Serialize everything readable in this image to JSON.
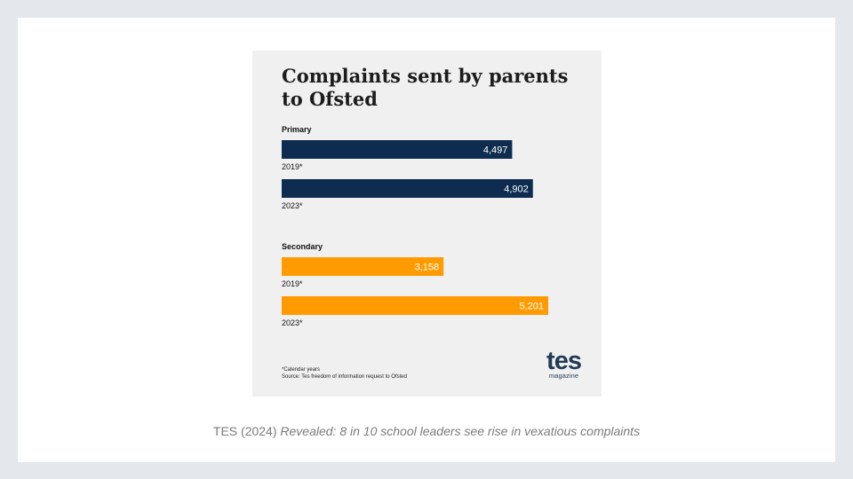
{
  "caption": {
    "source": "TES (2024)",
    "article_title": "Revealed: 8 in 10 school leaders see rise in vexatious complaints"
  },
  "chart_data": {
    "type": "bar",
    "orientation": "horizontal",
    "title": "Complaints sent by parents to Ofsted",
    "groups": [
      {
        "name": "Primary",
        "color": "#0d2c50",
        "bars": [
          {
            "label": "2019*",
            "value": 4497,
            "value_label": "4,497"
          },
          {
            "label": "2023*",
            "value": 4902,
            "value_label": "4,902"
          }
        ]
      },
      {
        "name": "Secondary",
        "color": "#ff9b00",
        "bars": [
          {
            "label": "2019*",
            "value": 3158,
            "value_label": "3,158"
          },
          {
            "label": "2023*",
            "value": 5201,
            "value_label": "5,201"
          }
        ]
      }
    ],
    "xlim": [
      0,
      5201
    ],
    "grid": false,
    "footnote": "*Calendar years",
    "source": "Source: Tes freedom of information request to Ofsted"
  },
  "logo": {
    "text": "tes",
    "subtext": "magazine"
  },
  "colors": {
    "primary_bar": "#0d2c50",
    "secondary_bar": "#ff9b00",
    "logo": "#233a55"
  }
}
